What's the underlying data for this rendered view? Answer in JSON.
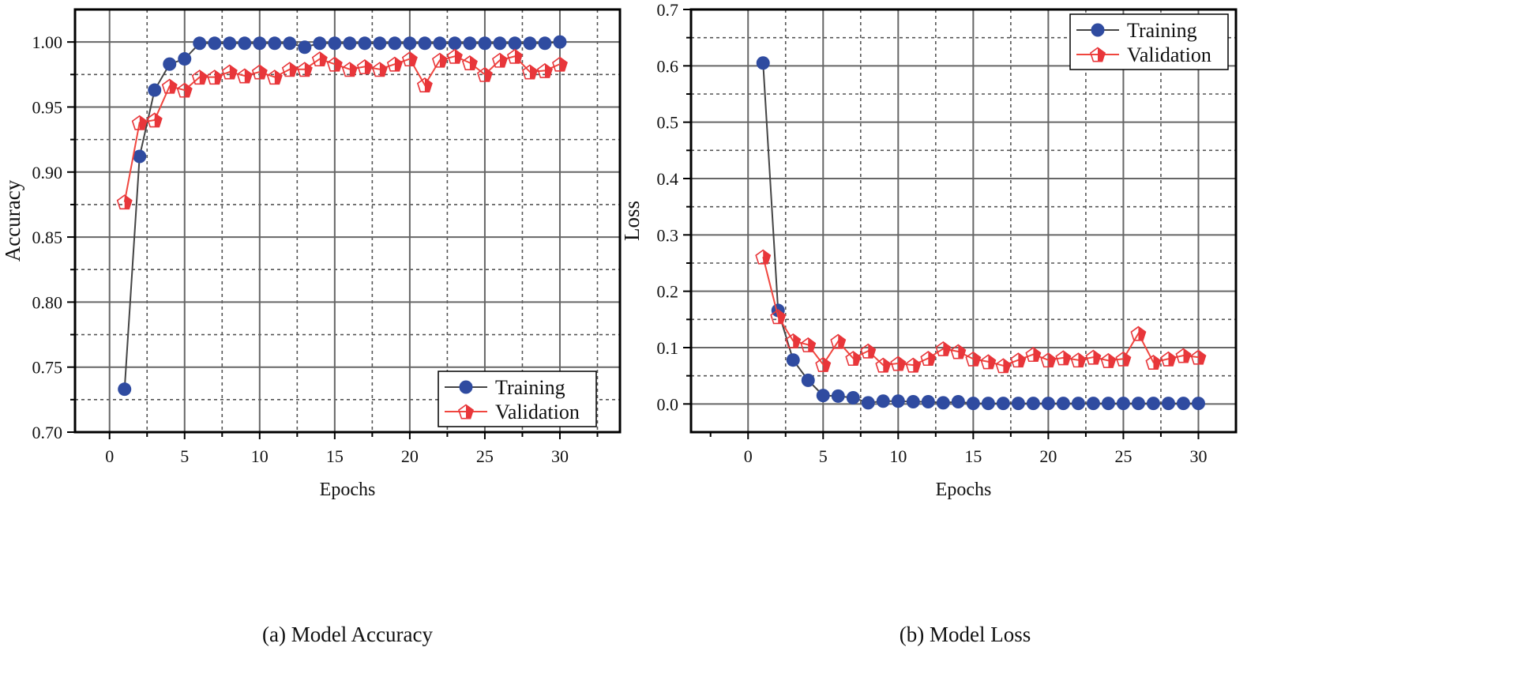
{
  "chart_data": [
    {
      "type": "line",
      "caption": "(a) Model Accuracy",
      "xlabel": "Epochs",
      "ylabel": "Accuracy",
      "xlim": [
        -2.3,
        34
      ],
      "ylim": [
        0.7,
        1.025
      ],
      "xticks": [
        0,
        5,
        10,
        15,
        20,
        25,
        30
      ],
      "yticks": [
        0.7,
        0.75,
        0.8,
        0.85,
        0.9,
        0.95,
        1.0
      ],
      "ytick_labels": [
        "0.70",
        "0.75",
        "0.80",
        "0.85",
        "0.90",
        "0.95",
        "1.00"
      ],
      "grid": true,
      "legend_position": "bottom-right",
      "x": [
        1,
        2,
        3,
        4,
        5,
        6,
        7,
        8,
        9,
        10,
        11,
        12,
        13,
        14,
        15,
        16,
        17,
        18,
        19,
        20,
        21,
        22,
        23,
        24,
        25,
        26,
        27,
        28,
        29,
        30
      ],
      "series": [
        {
          "name": "Training",
          "color": "#2F4BA0",
          "line_color": "#444444",
          "marker": "circle",
          "values": [
            0.733,
            0.912,
            0.963,
            0.983,
            0.987,
            0.999,
            0.999,
            0.999,
            0.999,
            0.999,
            0.999,
            0.999,
            0.996,
            0.999,
            0.999,
            0.999,
            0.999,
            0.999,
            0.999,
            0.999,
            0.999,
            0.999,
            0.999,
            0.999,
            0.999,
            0.999,
            0.999,
            0.999,
            0.999,
            1.0
          ]
        },
        {
          "name": "Validation",
          "color": "#E8363A",
          "line_color": "#F0463E",
          "marker": "pentagon-half",
          "values": [
            0.877,
            0.938,
            0.94,
            0.966,
            0.963,
            0.973,
            0.973,
            0.977,
            0.974,
            0.977,
            0.973,
            0.979,
            0.979,
            0.987,
            0.983,
            0.979,
            0.981,
            0.979,
            0.983,
            0.987,
            0.967,
            0.986,
            0.989,
            0.984,
            0.975,
            0.986,
            0.989,
            0.977,
            0.978,
            0.983
          ]
        }
      ]
    },
    {
      "type": "line",
      "caption": "(b) Model Loss",
      "xlabel": "Epochs",
      "ylabel": "Loss",
      "xlim": [
        -3.8,
        32.5
      ],
      "ylim": [
        -0.05,
        0.7
      ],
      "xticks": [
        0,
        5,
        10,
        15,
        20,
        25,
        30
      ],
      "yticks": [
        0.0,
        0.1,
        0.2,
        0.3,
        0.4,
        0.5,
        0.6,
        0.7
      ],
      "ytick_labels": [
        "0.0",
        "0.1",
        "0.2",
        "0.3",
        "0.4",
        "0.5",
        "0.6",
        "0.7"
      ],
      "grid": true,
      "legend_position": "top-right",
      "x": [
        1,
        2,
        3,
        4,
        5,
        6,
        7,
        8,
        9,
        10,
        11,
        12,
        13,
        14,
        15,
        16,
        17,
        18,
        19,
        20,
        21,
        22,
        23,
        24,
        25,
        26,
        27,
        28,
        29,
        30
      ],
      "series": [
        {
          "name": "Training",
          "color": "#2F4BA0",
          "line_color": "#444444",
          "marker": "circle",
          "values": [
            0.605,
            0.166,
            0.078,
            0.042,
            0.015,
            0.014,
            0.011,
            0.002,
            0.005,
            0.005,
            0.004,
            0.004,
            0.002,
            0.004,
            0.001,
            0.001,
            0.001,
            0.001,
            0.001,
            0.001,
            0.001,
            0.001,
            0.001,
            0.001,
            0.001,
            0.001,
            0.001,
            0.001,
            0.001,
            0.001
          ]
        },
        {
          "name": "Validation",
          "color": "#E8363A",
          "line_color": "#F0463E",
          "marker": "pentagon-half",
          "values": [
            0.261,
            0.155,
            0.112,
            0.105,
            0.07,
            0.111,
            0.081,
            0.094,
            0.069,
            0.072,
            0.069,
            0.081,
            0.098,
            0.093,
            0.08,
            0.075,
            0.068,
            0.078,
            0.088,
            0.078,
            0.082,
            0.078,
            0.083,
            0.077,
            0.08,
            0.125,
            0.074,
            0.08,
            0.086,
            0.083
          ]
        }
      ]
    }
  ]
}
